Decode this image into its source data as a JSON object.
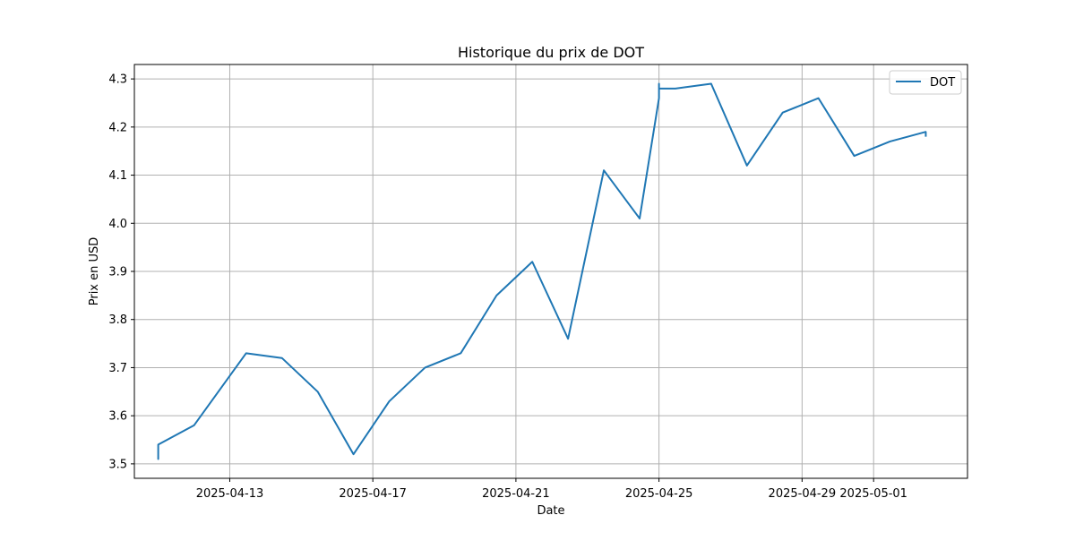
{
  "chart_data": {
    "type": "line",
    "title": "Historique du prix de DOT",
    "xlabel": "Date",
    "ylabel": "Prix en USD",
    "grid": true,
    "legend_placement": "top-right",
    "xlim": [
      "2025-04-10T08:00",
      "2025-05-03T15:00"
    ],
    "ylim": [
      3.47,
      4.33
    ],
    "x_ticks": [
      "2025-04-13",
      "2025-04-17",
      "2025-04-21",
      "2025-04-25",
      "2025-04-29",
      "2025-05-01"
    ],
    "y_ticks": [
      3.5,
      3.6,
      3.7,
      3.8,
      3.9,
      4.0,
      4.1,
      4.2,
      4.3
    ],
    "series": [
      {
        "name": "DOT",
        "color": "#1f77b4",
        "points": [
          {
            "x": "2025-04-11T00:00",
            "y": 3.51
          },
          {
            "x": "2025-04-11T00:00",
            "y": 3.52
          },
          {
            "x": "2025-04-11T00:00",
            "y": 3.51
          },
          {
            "x": "2025-04-11T00:00",
            "y": 3.54
          },
          {
            "x": "2025-04-12T00:00",
            "y": 3.58
          },
          {
            "x": "2025-04-13T11:00",
            "y": 3.73
          },
          {
            "x": "2025-04-14T11:00",
            "y": 3.72
          },
          {
            "x": "2025-04-15T11:00",
            "y": 3.65
          },
          {
            "x": "2025-04-16T11:00",
            "y": 3.52
          },
          {
            "x": "2025-04-17T11:00",
            "y": 3.63
          },
          {
            "x": "2025-04-18T11:00",
            "y": 3.7
          },
          {
            "x": "2025-04-19T11:00",
            "y": 3.73
          },
          {
            "x": "2025-04-20T11:00",
            "y": 3.85
          },
          {
            "x": "2025-04-21T11:00",
            "y": 3.92
          },
          {
            "x": "2025-04-22T11:00",
            "y": 3.76
          },
          {
            "x": "2025-04-23T11:00",
            "y": 4.11
          },
          {
            "x": "2025-04-24T11:00",
            "y": 4.01
          },
          {
            "x": "2025-04-25T00:00",
            "y": 4.26
          },
          {
            "x": "2025-04-25T00:00",
            "y": 4.29
          },
          {
            "x": "2025-04-25T00:00",
            "y": 4.28
          },
          {
            "x": "2025-04-25T11:00",
            "y": 4.28
          },
          {
            "x": "2025-04-26T11:00",
            "y": 4.29
          },
          {
            "x": "2025-04-27T11:00",
            "y": 4.12
          },
          {
            "x": "2025-04-28T11:00",
            "y": 4.23
          },
          {
            "x": "2025-04-29T11:00",
            "y": 4.26
          },
          {
            "x": "2025-04-30T11:00",
            "y": 4.14
          },
          {
            "x": "2025-05-01T11:00",
            "y": 4.17
          },
          {
            "x": "2025-05-02T11:00",
            "y": 4.19
          },
          {
            "x": "2025-05-02T11:00",
            "y": 4.18
          }
        ]
      }
    ]
  }
}
